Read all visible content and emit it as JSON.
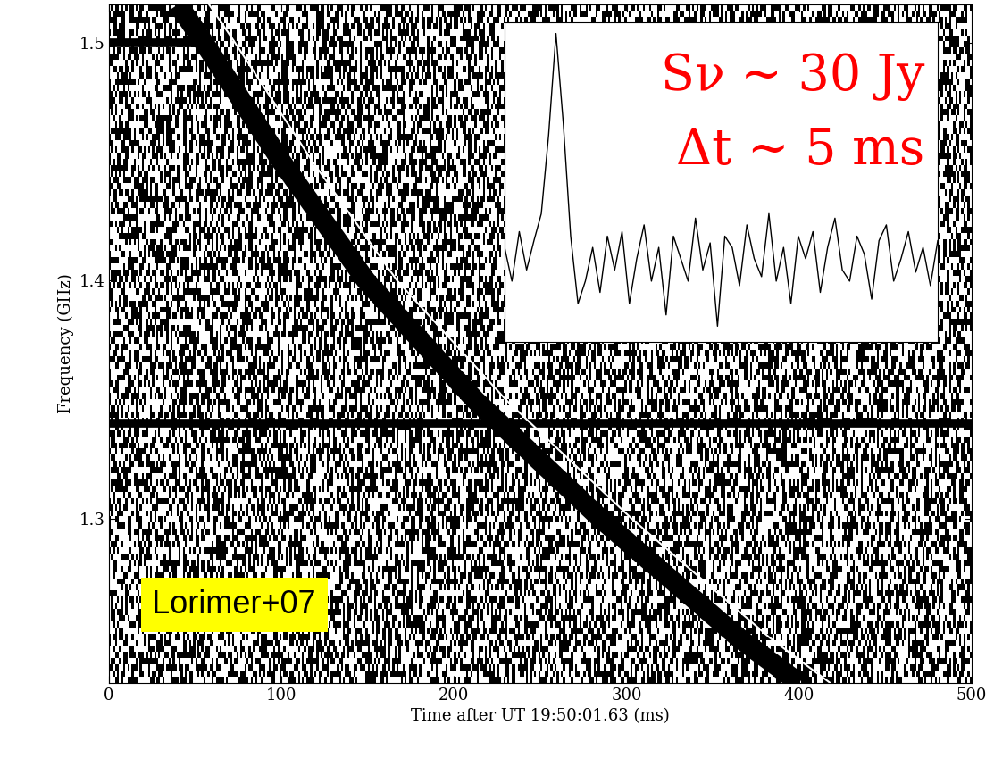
{
  "chart_data": {
    "type": "dynamic_spectrum",
    "x_label": "Time after UT 19:50:01.63 (ms)",
    "y_label": "Frequency (GHz)",
    "xlim": [
      0,
      500
    ],
    "ylim": [
      1.231,
      1.516
    ],
    "xticks": [
      0,
      100,
      200,
      300,
      400,
      500
    ],
    "yticks": [
      1.3,
      1.4,
      1.5
    ],
    "sweep": {
      "x": [
        40,
        55,
        100,
        149,
        212,
        285,
        365,
        400
      ],
      "y": [
        1.516,
        1.5,
        1.45,
        1.4,
        1.35,
        1.3,
        1.25,
        1.231
      ],
      "color": "#000000"
    },
    "dedispersion_curve": {
      "x": [
        58,
        73,
        118,
        167,
        230,
        303,
        383,
        418
      ],
      "y": [
        1.516,
        1.5,
        1.45,
        1.4,
        1.35,
        1.3,
        1.25,
        1.231
      ],
      "color": "#ffffff"
    },
    "rfi": [
      {
        "y": 1.34,
        "x": [
          0,
          500
        ]
      },
      {
        "y": 1.5,
        "x": [
          0,
          55
        ]
      }
    ],
    "label": {
      "text": "Lorimer+07",
      "color": "#ffff00"
    },
    "inset": {
      "texts": [
        "Sν ~ 30 Jy",
        "Δt ~ 5 ms"
      ],
      "color": "#ff0000",
      "tick_labels": false,
      "ylim": [
        -0.37,
        1.05
      ],
      "values": [
        0.05,
        -0.1,
        0.12,
        -0.05,
        0.08,
        0.2,
        0.55,
        1.0,
        0.6,
        0.1,
        -0.2,
        -0.1,
        0.05,
        -0.15,
        0.1,
        -0.05,
        0.12,
        -0.2,
        0.0,
        0.15,
        -0.1,
        0.05,
        -0.25,
        0.1,
        0.0,
        -0.1,
        0.18,
        -0.05,
        0.07,
        -0.3,
        0.1,
        0.05,
        -0.12,
        0.15,
        0.0,
        -0.08,
        0.2,
        -0.1,
        0.05,
        -0.2,
        0.1,
        0.0,
        0.12,
        -0.15,
        0.05,
        0.18,
        -0.05,
        -0.1,
        0.1,
        0.02,
        -0.18,
        0.08,
        0.15,
        -0.1,
        0.0,
        0.12,
        -0.06,
        0.05,
        -0.12,
        0.08
      ]
    }
  }
}
